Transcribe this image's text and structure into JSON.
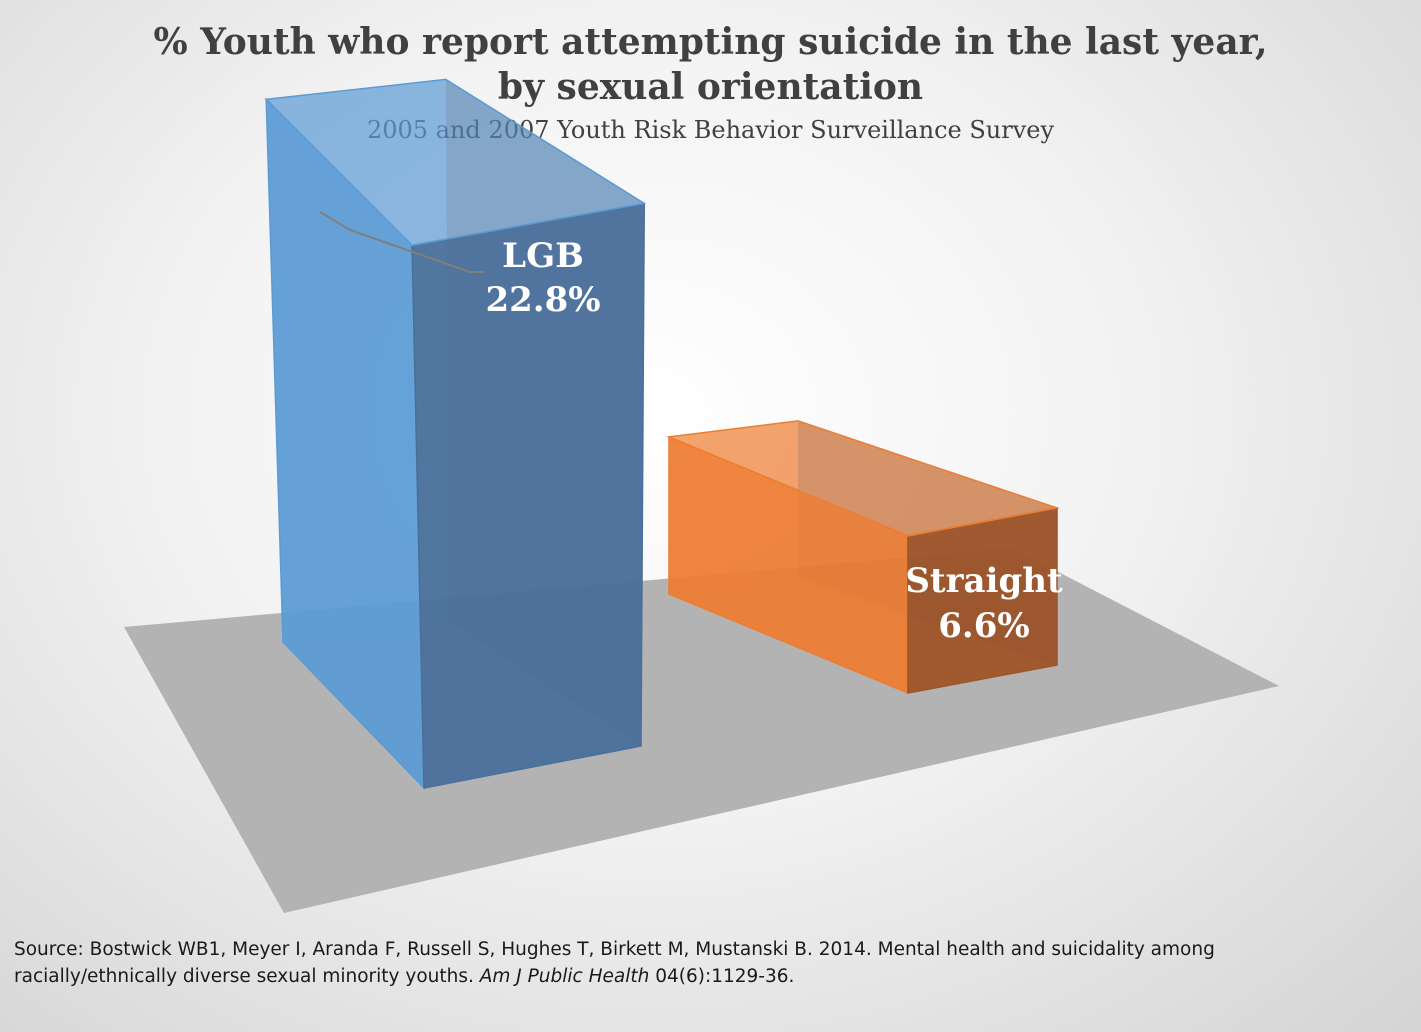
{
  "chart_data": {
    "type": "bar",
    "title": "% Youth who report attempting suicide in the last year,\nby sexual orientation",
    "subtitle": "2005 and 2007 Youth Risk Behavior Surveillance Survey",
    "categories": [
      "LGB",
      "Straight"
    ],
    "values": [
      22.8,
      6.6
    ],
    "value_labels": [
      "22.8%",
      "6.6%"
    ],
    "unit": "%",
    "colors": [
      "#5b9bd5",
      "#ed7d31"
    ],
    "style": "3d-perspective",
    "grid": false,
    "legend": "none"
  },
  "source": {
    "prefix": "Source: Bostwick WB1, Meyer I, Aranda F, Russell S, Hughes T, Birkett M, Mustanski B. 2014.  Mental health and suicidality among racially/ethnically diverse sexual minority youths. ",
    "journal": "Am J Public Health",
    "suffix": " 04(6):1129-36."
  }
}
